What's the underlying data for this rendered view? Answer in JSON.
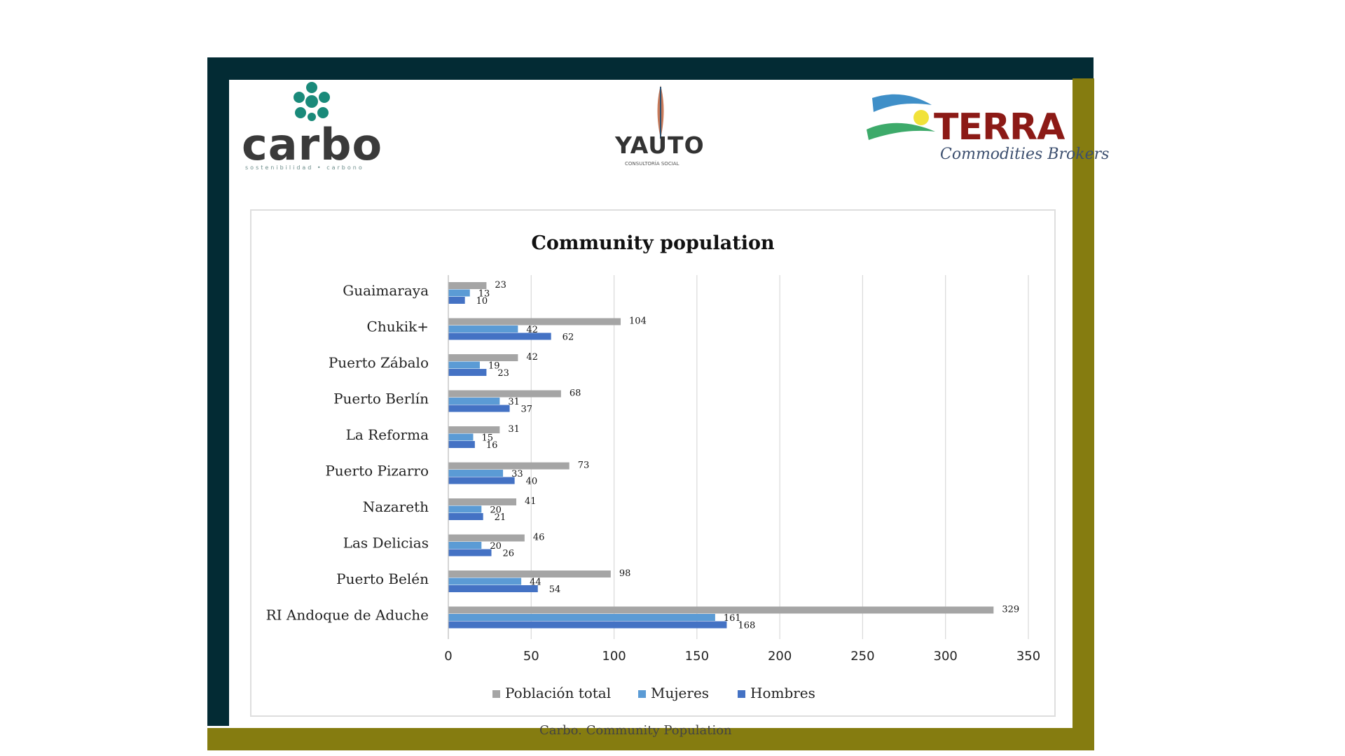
{
  "logos": {
    "carbo": {
      "word": "carbo",
      "tag": "sostenibilidad  •  carbono"
    },
    "yauto": {
      "word": "YAUTO",
      "tag": "CONSULTORÍA SOCIAL"
    },
    "terra": {
      "word": "TERRA",
      "tag": "Commodities Brokers"
    }
  },
  "colors": {
    "frame_dark": "#032b34",
    "frame_olive": "#857c10",
    "poblacion_total": "#a5a5a5",
    "mujeres": "#5b9bd5",
    "hombres": "#4472c4"
  },
  "chart_data": {
    "type": "bar",
    "orientation": "horizontal",
    "title": "Community population",
    "categories": [
      "Guaimaraya",
      "Chukik+",
      "Puerto Zábalo",
      "Puerto Berlín",
      "La Reforma",
      "Puerto Pizarro",
      "Nazareth",
      "Las Delicias",
      "Puerto Belén",
      "RI Andoque de Aduche"
    ],
    "series": [
      {
        "name": "Población total",
        "values": [
          23,
          104,
          42,
          68,
          31,
          73,
          41,
          46,
          98,
          329
        ]
      },
      {
        "name": "Mujeres",
        "values": [
          13,
          42,
          19,
          31,
          15,
          33,
          20,
          20,
          44,
          161
        ]
      },
      {
        "name": "Hombres",
        "values": [
          10,
          62,
          23,
          37,
          16,
          40,
          21,
          26,
          54,
          168
        ]
      }
    ],
    "xlim": [
      0,
      350
    ],
    "xticks": [
      "0",
      "50",
      "100",
      "150",
      "200",
      "250",
      "300",
      "350"
    ],
    "grid": true,
    "legend": "bottom"
  },
  "caption": "Carbo. Community Population"
}
